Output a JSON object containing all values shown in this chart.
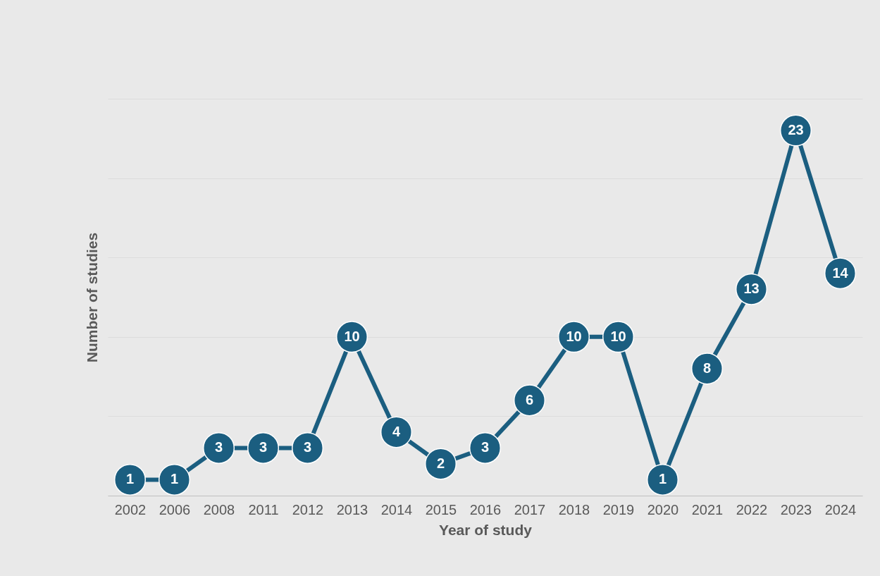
{
  "chart_data": {
    "type": "line",
    "xlabel": "Year of study",
    "ylabel": "Number of studies",
    "categories": [
      "2002",
      "2006",
      "2008",
      "2011",
      "2012",
      "2013",
      "2014",
      "2015",
      "2016",
      "2017",
      "2018",
      "2019",
      "2020",
      "2021",
      "2022",
      "2023",
      "2024"
    ],
    "series": [
      {
        "color": "#1b5e80",
        "values": [
          1,
          1,
          3,
          3,
          3,
          10,
          4,
          2,
          3,
          6,
          10,
          10,
          1,
          8,
          13,
          23,
          14
        ]
      }
    ],
    "ylim": [
      0,
      25
    ],
    "yticks": [
      {
        "value": 0,
        "label": null
      },
      {
        "value": 5,
        "label": null
      },
      {
        "value": 10,
        "label": null
      },
      {
        "value": 15,
        "label": null
      },
      {
        "value": 20,
        "label": null
      },
      {
        "value": 25,
        "label": null
      }
    ],
    "tick_labels": "x",
    "grid": "y",
    "data_labels": true,
    "marker": "circle",
    "line_style": "solid"
  }
}
